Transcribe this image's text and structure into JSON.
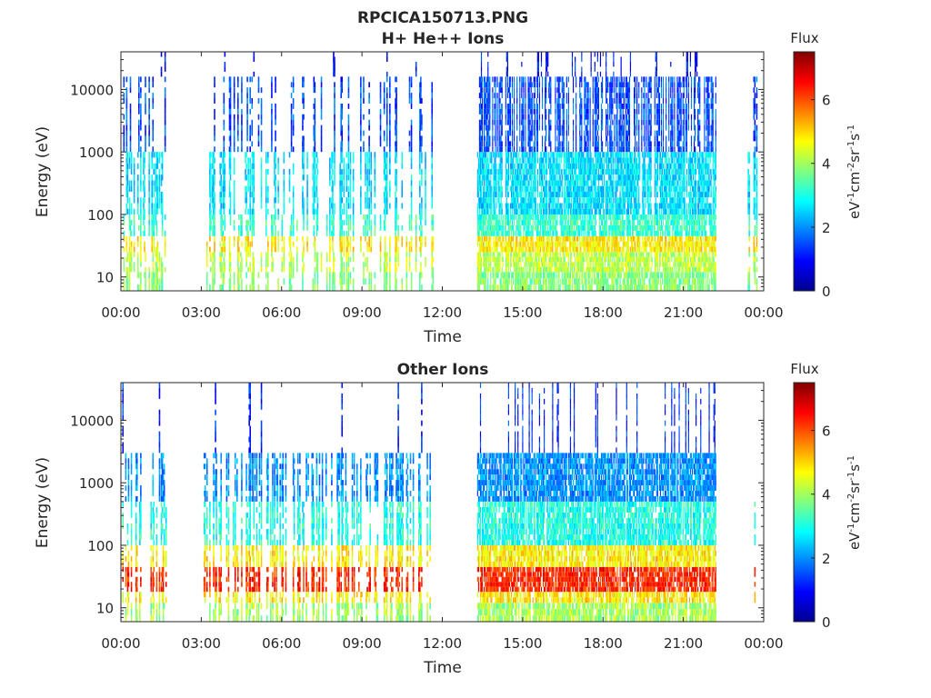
{
  "figure": {
    "title": "RPCICA150713.PNG"
  },
  "chart_data": [
    {
      "type": "heatmap",
      "title": "H+ He++ Ions",
      "xlabel": "Time",
      "ylabel": "Energy (eV)",
      "x_ticks": [
        "00:00",
        "03:00",
        "06:00",
        "09:00",
        "12:00",
        "15:00",
        "18:00",
        "21:00",
        "00:00"
      ],
      "x_range_hours": [
        0,
        24
      ],
      "y_scale": "log",
      "y_ticks": [
        10,
        100,
        1000,
        10000
      ],
      "y_tick_labels": [
        "10",
        "100",
        "1000",
        "10000"
      ],
      "y_range": [
        6,
        40000
      ],
      "colorbar": {
        "title": "Flux",
        "label": "eV-1cm-2sr-1s-1",
        "range": [
          0,
          7.5
        ],
        "ticks": [
          0,
          2,
          4,
          6
        ],
        "tick_labels": [
          "0",
          "2",
          "4",
          "6"
        ],
        "colormap": "jet"
      },
      "data_intervals_hours": [
        [
          0.05,
          1.75
        ],
        [
          3.05,
          11.65
        ],
        [
          13.3,
          22.2
        ],
        [
          23.4,
          23.75
        ]
      ],
      "continuous_intervals_hours": [
        [
          13.3,
          22.2
        ]
      ],
      "dominant_flux_by_energy_band": [
        {
          "energy_eV": [
            6,
            12
          ],
          "flux": 3.8
        },
        {
          "energy_eV": [
            12,
            25
          ],
          "flux": 4.2
        },
        {
          "energy_eV": [
            25,
            45
          ],
          "flux": 4.8
        },
        {
          "energy_eV": [
            45,
            100
          ],
          "flux": 3.2
        },
        {
          "energy_eV": [
            100,
            1000
          ],
          "flux": 2.6
        },
        {
          "energy_eV": [
            1000,
            16000
          ],
          "flux": 1.5
        },
        {
          "energy_eV": [
            16000,
            40000
          ],
          "flux": 1.0
        }
      ]
    },
    {
      "type": "heatmap",
      "title": "Other Ions",
      "xlabel": "Time",
      "ylabel": "Energy (eV)",
      "x_ticks": [
        "00:00",
        "03:00",
        "06:00",
        "09:00",
        "12:00",
        "15:00",
        "18:00",
        "21:00",
        "00:00"
      ],
      "x_range_hours": [
        0,
        24
      ],
      "y_scale": "log",
      "y_ticks": [
        10,
        100,
        1000,
        10000
      ],
      "y_tick_labels": [
        "10",
        "100",
        "1000",
        "10000"
      ],
      "y_range": [
        6,
        40000
      ],
      "colorbar": {
        "title": "Flux",
        "label": "eV-1cm-2sr-1s-1",
        "range": [
          0,
          7.5
        ],
        "ticks": [
          0,
          2,
          4,
          6
        ],
        "tick_labels": [
          "0",
          "2",
          "4",
          "6"
        ],
        "colormap": "jet"
      },
      "data_intervals_hours": [
        [
          0.05,
          1.75
        ],
        [
          3.05,
          11.65
        ],
        [
          13.3,
          22.2
        ],
        [
          23.4,
          23.75
        ]
      ],
      "continuous_intervals_hours": [
        [
          13.3,
          22.2
        ]
      ],
      "dominant_flux_by_energy_band": [
        {
          "energy_eV": [
            6,
            12
          ],
          "flux": 4.0
        },
        {
          "energy_eV": [
            12,
            18
          ],
          "flux": 4.8
        },
        {
          "energy_eV": [
            18,
            45
          ],
          "flux": 6.3
        },
        {
          "energy_eV": [
            45,
            100
          ],
          "flux": 4.8
        },
        {
          "energy_eV": [
            100,
            500
          ],
          "flux": 3.0
        },
        {
          "energy_eV": [
            500,
            3000
          ],
          "flux": 2.0
        },
        {
          "energy_eV": [
            3000,
            40000
          ],
          "flux": 1.2
        }
      ]
    }
  ]
}
